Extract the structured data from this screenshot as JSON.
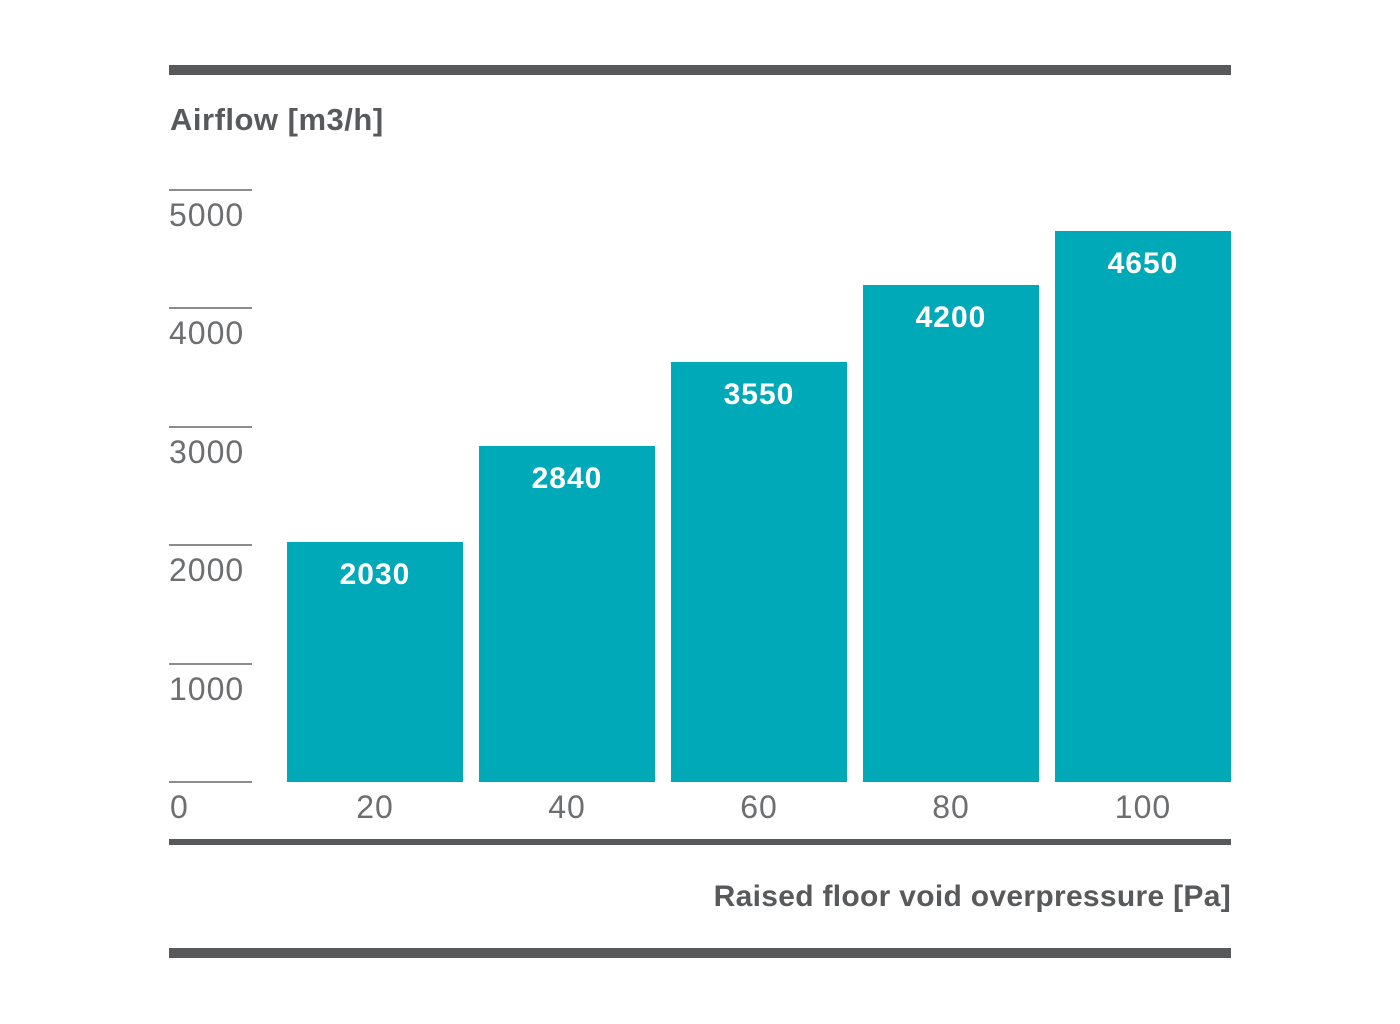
{
  "chart_data": {
    "type": "bar",
    "title": "Airflow [m3/h]",
    "ylabel": "Airflow [m3/h]",
    "xlabel": "Raised floor void overpressure [Pa]",
    "categories": [
      "20",
      "40",
      "60",
      "80",
      "100"
    ],
    "values": [
      2030,
      2840,
      3550,
      4200,
      4650
    ],
    "bar_labels": [
      "2030",
      "2840",
      "3550",
      "4200",
      "4650"
    ],
    "x_origin_label": "0",
    "y_ticks": [
      0,
      1000,
      2000,
      3000,
      4000,
      5000
    ],
    "y_tick_labels": [
      "0",
      "1000",
      "2000",
      "3000",
      "4000",
      "5000"
    ],
    "ylim": [
      0,
      5000
    ],
    "grid": false,
    "legend": false,
    "layout_hints": {
      "bar_value_labels": "inside-top, centered, white bold",
      "y_tick_style": "short horizontal dash above each label, left side only",
      "frame": "thick horizontal rules above title and below x-axis title"
    },
    "colors": {
      "bar": "#00A9B7",
      "bar_label": "#FFFFFF",
      "axis_text": "#6D6E70",
      "heading_text": "#58595B",
      "rule": "#58595B",
      "tick_line": "#8A8C8E",
      "background": "#FFFFFF"
    }
  }
}
